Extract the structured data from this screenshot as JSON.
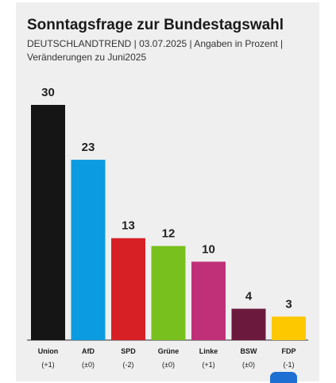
{
  "chart_data": {
    "type": "bar",
    "title": "Sonntagsfrage zur Bundestagswahl",
    "subtitle": "DEUTSCHLANDTREND | 03.07.2025 | Angaben in Prozent | Veränderungen zu Juni2025",
    "categories": [
      "Union",
      "AfD",
      "SPD",
      "Grüne",
      "Linke",
      "BSW",
      "FDP"
    ],
    "values": [
      30,
      23,
      13,
      12,
      10,
      4,
      3
    ],
    "changes": [
      "(+1)",
      "(±0)",
      "(-2)",
      "(±0)",
      "(+1)",
      "(±0)",
      "(-1)"
    ],
    "colors": [
      "#151515",
      "#0b9be0",
      "#d71f26",
      "#78c01e",
      "#c03079",
      "#6b1a3e",
      "#fdc800"
    ],
    "ylim": [
      0,
      30
    ],
    "grid": false,
    "legend": "none"
  },
  "logo": {
    "color": "#1d6fd1",
    "icon": "broadcaster-logo-icon"
  }
}
